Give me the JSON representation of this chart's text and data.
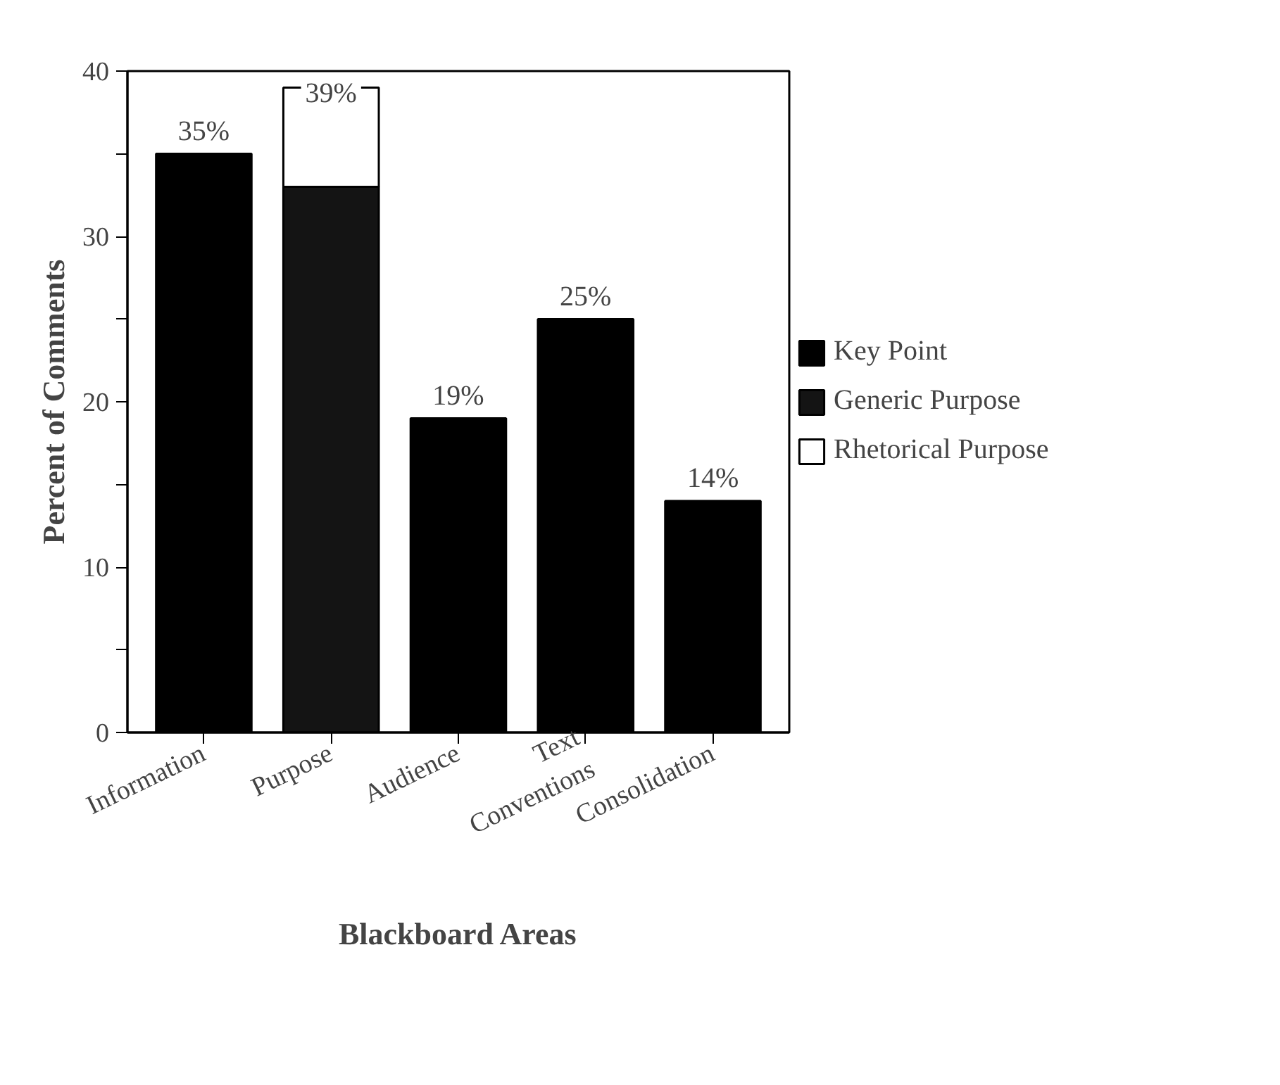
{
  "chart_data": {
    "type": "bar",
    "stacked": true,
    "xlabel": "Blackboard Areas",
    "ylabel": "Percent of Comments",
    "categories": [
      "Information",
      "Purpose",
      "Audience",
      "Text\nConventions",
      "Consolidation"
    ],
    "series": [
      {
        "name": "Key Point",
        "color": "#000000",
        "values": [
          35,
          null,
          19,
          25,
          14
        ]
      },
      {
        "name": "Generic Purpose",
        "color": "#141414",
        "values": [
          null,
          33,
          null,
          null,
          null
        ]
      },
      {
        "name": "Rhetorical Purpose",
        "color": "#ffffff",
        "values": [
          null,
          6,
          null,
          null,
          null
        ]
      }
    ],
    "totals": [
      "35%",
      "39%",
      "19%",
      "25%",
      "14%"
    ],
    "ylim": [
      0,
      40
    ],
    "yticks": [
      0,
      {
        "value": 5,
        "label": null
      },
      10,
      {
        "value": 15,
        "label": null
      },
      20,
      {
        "value": 25,
        "label": null
      },
      30,
      {
        "value": 35,
        "label": null
      },
      40
    ],
    "grid": false,
    "legend": "right"
  }
}
